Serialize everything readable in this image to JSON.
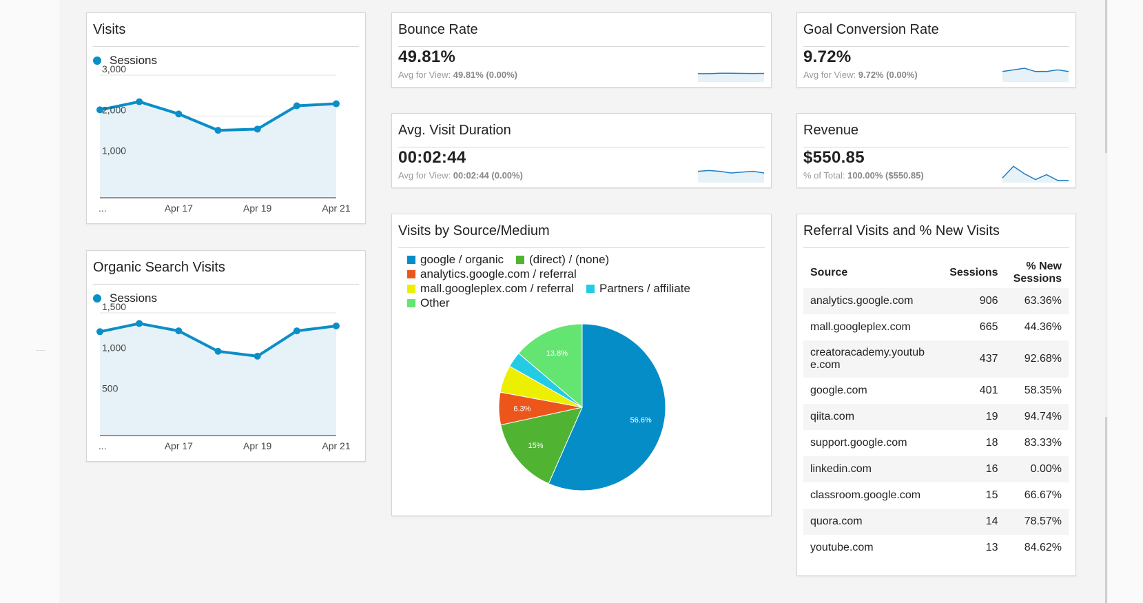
{
  "visits_card": {
    "title": "Visits",
    "legend": "Sessions",
    "y_ticks": [
      "3,000",
      "2,000",
      "1,000"
    ],
    "x_ticks": [
      "...",
      "Apr 17",
      "Apr 19",
      "Apr 21"
    ]
  },
  "organic_card": {
    "title": "Organic Search Visits",
    "legend": "Sessions",
    "y_ticks": [
      "1,500",
      "1,000",
      "500"
    ],
    "x_ticks": [
      "...",
      "Apr 17",
      "Apr 19",
      "Apr 21"
    ]
  },
  "bounce_rate": {
    "title": "Bounce Rate",
    "value": "49.81%",
    "sub_label": "Avg for View:",
    "sub_value": "49.81% (0.00%)"
  },
  "goal_conversion": {
    "title": "Goal Conversion Rate",
    "value": "9.72%",
    "sub_label": "Avg for View:",
    "sub_value": "9.72% (0.00%)"
  },
  "avg_duration": {
    "title": "Avg. Visit Duration",
    "value": "00:02:44",
    "sub_label": "Avg for View:",
    "sub_value": "00:02:44 (0.00%)"
  },
  "revenue": {
    "title": "Revenue",
    "value": "$550.85",
    "sub_label": "% of Total:",
    "sub_value": "100.00% ($550.85)"
  },
  "source_medium": {
    "title": "Visits by Source/Medium",
    "legend": [
      {
        "label": "google / organic",
        "color": "#058dc7"
      },
      {
        "label": "(direct) / (none)",
        "color": "#50b432"
      },
      {
        "label": "analytics.google.com / referral",
        "color": "#ed561b"
      },
      {
        "label": "mall.googleplex.com / referral",
        "color": "#edef00"
      },
      {
        "label": "Partners / affiliate",
        "color": "#24cbe5"
      },
      {
        "label": "Other",
        "color": "#64e572"
      }
    ],
    "slice_labels": [
      "56.6%",
      "15%",
      "6.3%",
      "13.8%"
    ]
  },
  "referral": {
    "title": "Referral Visits and % New Visits",
    "headers": {
      "source": "Source",
      "sessions": "Sessions",
      "new_sessions_1": "% New",
      "new_sessions_2": "Sessions"
    },
    "rows": [
      {
        "source": "analytics.google.com",
        "sessions": "906",
        "new": "63.36%"
      },
      {
        "source": "mall.googleplex.com",
        "sessions": "665",
        "new": "44.36%"
      },
      {
        "source_1": "creatoracademy.youtub",
        "source_2": "e.com",
        "sessions": "437",
        "new": "92.68%"
      },
      {
        "source": "google.com",
        "sessions": "401",
        "new": "58.35%"
      },
      {
        "source": "qiita.com",
        "sessions": "19",
        "new": "94.74%"
      },
      {
        "source": "support.google.com",
        "sessions": "18",
        "new": "83.33%"
      },
      {
        "source": "linkedin.com",
        "sessions": "16",
        "new": "0.00%"
      },
      {
        "source": "classroom.google.com",
        "sessions": "15",
        "new": "66.67%"
      },
      {
        "source": "quora.com",
        "sessions": "14",
        "new": "78.57%"
      },
      {
        "source": "youtube.com",
        "sessions": "13",
        "new": "84.62%"
      }
    ]
  },
  "chart_data": [
    {
      "type": "area",
      "x": [
        "Apr 15",
        "Apr 16",
        "Apr 17",
        "Apr 18",
        "Apr 19",
        "Apr 20",
        "Apr 21"
      ],
      "series": [
        {
          "name": "Sessions",
          "values": [
            2150,
            2350,
            2050,
            1650,
            1680,
            2250,
            2300
          ]
        }
      ],
      "ylim": [
        0,
        3000
      ],
      "color": "#0b8ec7"
    },
    {
      "type": "area",
      "x": [
        "Apr 15",
        "Apr 16",
        "Apr 17",
        "Apr 18",
        "Apr 19",
        "Apr 20",
        "Apr 21"
      ],
      "series": [
        {
          "name": "Sessions",
          "values": [
            1270,
            1370,
            1280,
            1030,
            970,
            1280,
            1340
          ]
        }
      ],
      "ylim": [
        0,
        1500
      ],
      "color": "#0b8ec7"
    },
    {
      "type": "pie",
      "categories": [
        "google / organic",
        "(direct) / (none)",
        "analytics.google.com / referral",
        "mall.googleplex.com / referral",
        "Partners / affiliate",
        "Other"
      ],
      "values": [
        56.6,
        15,
        6.3,
        5.3,
        3,
        13.8
      ],
      "colors": [
        "#058dc7",
        "#50b432",
        "#ed561b",
        "#edef00",
        "#24cbe5",
        "#64e572"
      ]
    }
  ],
  "sparklines": {
    "bounce_rate": [
      0.42,
      0.42,
      0.45,
      0.45,
      0.44,
      0.43,
      0.44
    ],
    "goal_conversion": [
      0.55,
      0.65,
      0.75,
      0.55,
      0.55,
      0.65,
      0.55
    ],
    "avg_duration": [
      0.6,
      0.65,
      0.6,
      0.5,
      0.55,
      0.6,
      0.5
    ],
    "revenue": [
      0.2,
      0.9,
      0.45,
      0.1,
      0.4,
      0.05,
      0.05
    ]
  }
}
